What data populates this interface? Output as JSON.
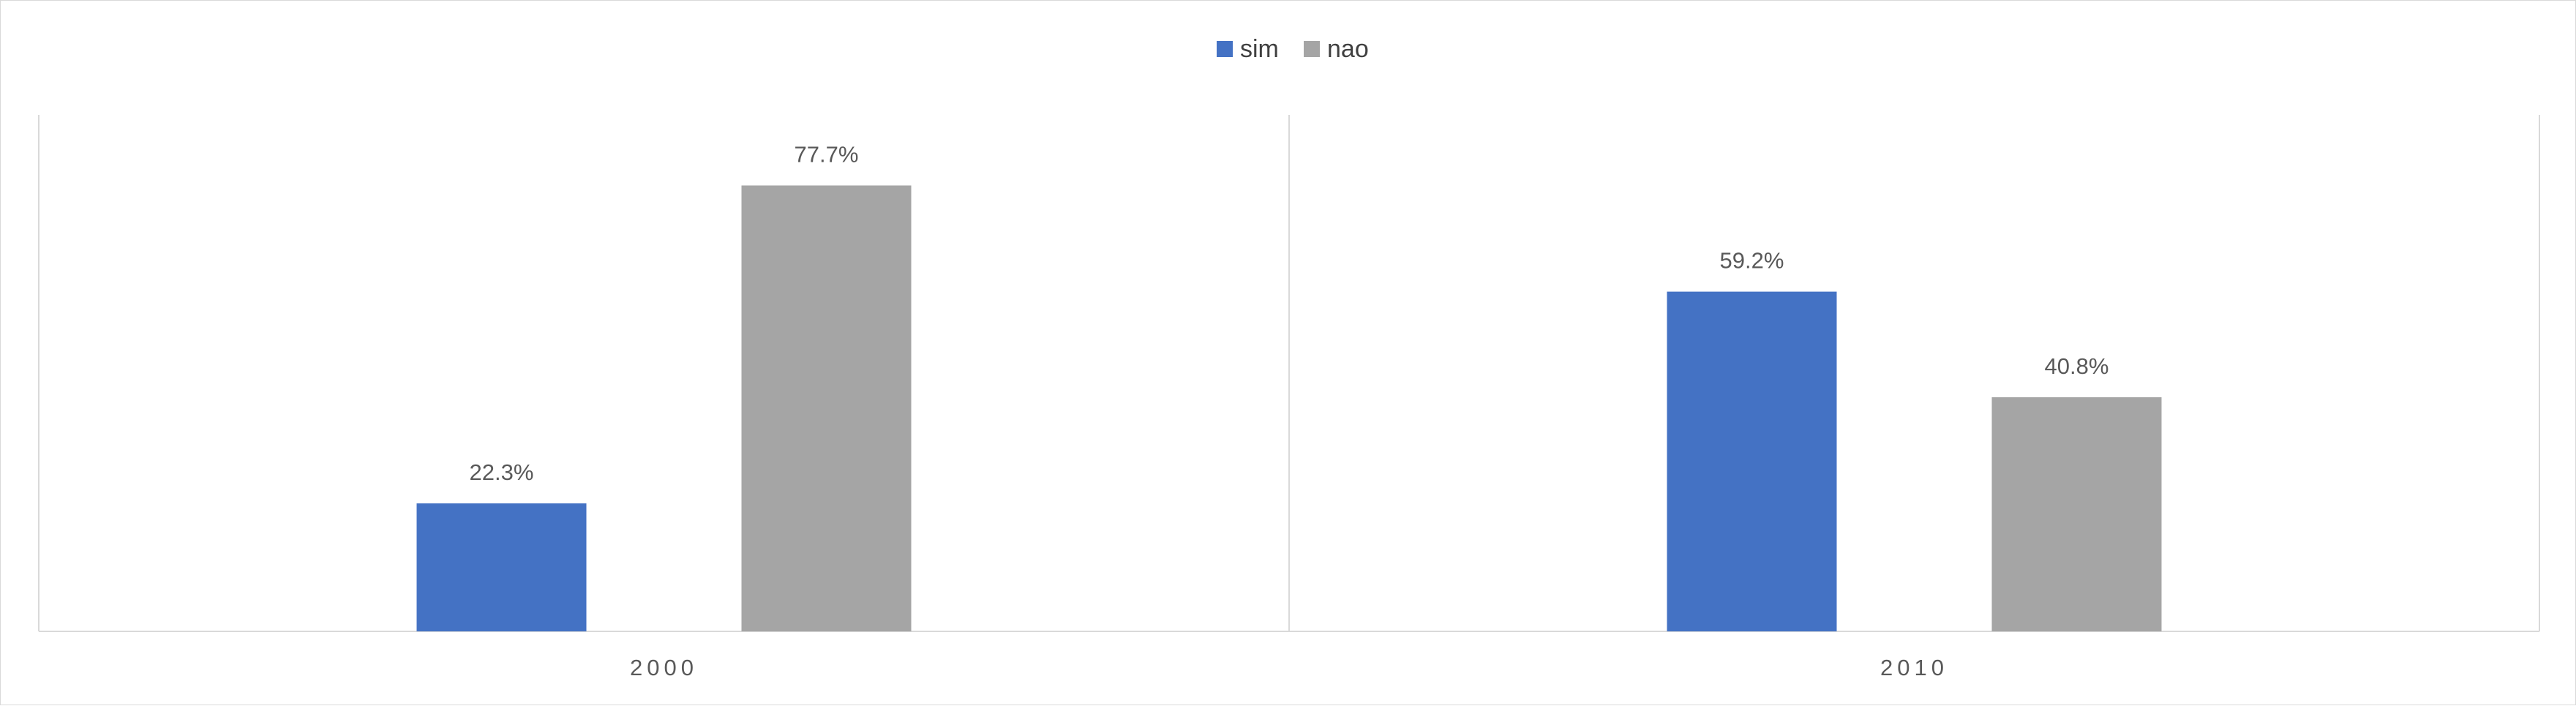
{
  "chart_data": {
    "type": "bar",
    "categories": [
      "2000",
      "2010"
    ],
    "series": [
      {
        "name": "sim",
        "values": [
          22.3,
          59.2
        ],
        "color": "#4472C4"
      },
      {
        "name": "nao",
        "values": [
          77.7,
          40.8
        ],
        "color": "#A5A5A5"
      }
    ],
    "data_labels": [
      [
        "22.3%",
        "59.2%"
      ],
      [
        "77.7%",
        "40.8%"
      ]
    ],
    "title": "",
    "xlabel": "",
    "ylabel": "",
    "ylim": [
      0,
      90
    ],
    "grid": false,
    "legend_position": "top",
    "axis_color": "#d9d9d9"
  }
}
